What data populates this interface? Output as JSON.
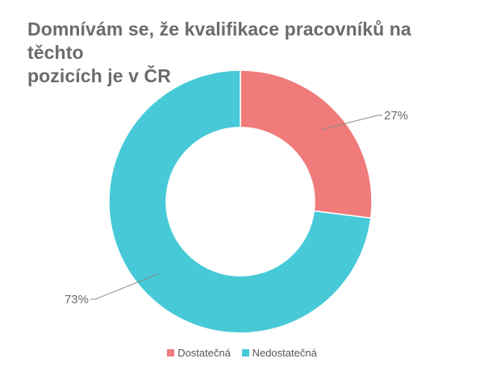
{
  "chart_data": {
    "type": "pie",
    "subtype": "donut",
    "title_line1": "Domnívám se, že kvalifikace pracovníků na těchto",
    "title_line2": "pozicích je v ČR",
    "legend_position": "bottom",
    "slices": [
      {
        "name": "Dostatečná",
        "value": 27,
        "label": "27%",
        "color": "#f07b7b"
      },
      {
        "name": "Nedostatečná",
        "value": 73,
        "label": "73%",
        "color": "#47c9d8"
      }
    ]
  }
}
